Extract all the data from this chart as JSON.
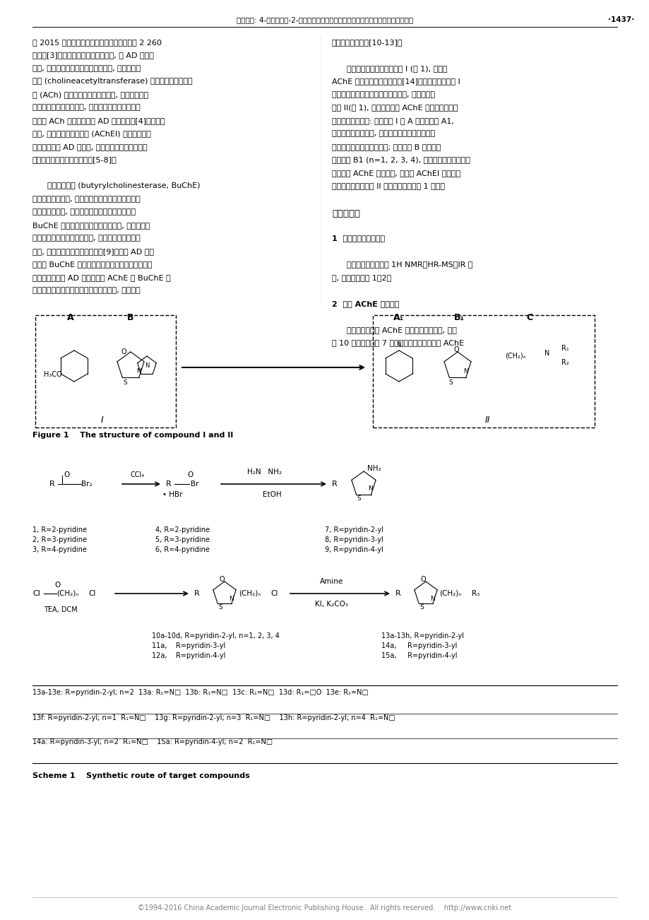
{
  "page_width": 9.2,
  "page_height": 13.02,
  "background_color": "#ffffff",
  "header_text": "曹婷婷等: 4-吡啶基噻唑-2-胺衍生物的设计、合成及其对乙酰胆碱酯酶的抑制活性研究",
  "header_page": "·1437·",
  "footer_text": "©1994-2016 China Academic Journal Electronic Publishing House.  All rights reserved.    http://www.cnki.net",
  "col1_text": [
    "仅 2015 年因阿尔茨海默病导致的费用就高达 2 260",
    "亿美元[3]。胆碱能神经损伤假说认为, 在 AD 病理过",
    "程中, 基底前脑区的胆碱能神经元丢失, 胆碱乙酰转",
    "移酶 (cholineacetyltransferase) 活性下降造成乙酰胆",
    "碱 (ACh) 的合成、释放和摄取减少, 使患者的学习",
    "和记忆力逐渐衰退。因此, 改善胆碱能神经系统、增",
    "加脑内 ACh 的水平是治疗 AD 的重要途径[4]。到目前",
    "为止, 乙酰胆碱酯酶抑制剂 (AChEI) 已被成功开发",
    "成临床上治疗 AD 的药物, 代表药物如石杉碱甲、他",
    "克林、多奈哌齐、利斯的明等[5-8]。",
    "",
    "      丁酰胆碱酯酶 (butyrylcholinesterase, BuChE)",
    "又称假性胆碱酯酶, 属于丝氨酸酶酶家族。主要分布",
    "于肝脏及血清中, 肌肉和脑组织中也有少量存在。",
    "BuChE 能与有机磷毒剂或杀虫剂结合, 并能水解许",
    "多酯类、肽类及酰胺类化合物, 参与某些药物的代谢",
    "过程, 它还有促进细胞生长的作用[9]。如果 AD 治疗",
    "药物使 BuChE 的活性受到抑制将会带来一定的不良",
    "反应。现有治疗 AD 的药物存在 AChE 与 BuChE 选",
    "择性抑制不理想、肾毒性、肝毒性等问题, 从而限制"
  ],
  "col2_text": [
    "了它们的临床应用[10-13]。",
    "",
    "      本实验室先前合成了化合物 I (图 1), 在抑制",
    "AChE 活性方面有一定的效果[14]。本文将在化合物 I",
    "的化学结构基础上对其结构进行优化, 合成新的化",
    "合物 II(图 1), 并考察它们对 AChE 的抑制作用。具",
    "体的优化过程如下: 将化合物 I 的 A 部分替换成 A1,",
    "即用吡啶环代替苯环, 考察引入具有孤电子对配位",
    "的吡啶后对生物活性的影响; 同时改变 B 官能团的",
    "长度得到 B1 (n=1, 2, 3, 4), 考察碳连长度的改变是",
    "否影响其 AChE 抑制活性, 为新的 AChEI 的开发做",
    "探索性研究。化合物 II 的合成如合成路线 1 所示。",
    "",
    "结果与讨论",
    "",
    "1  化合物的合成及鉴定",
    "",
    "      合成化合物的结构经 1H NMR、HR-MS、IR 确",
    "证, 理化数据见表 1、2。",
    "",
    "2  体外 AChE 抑制活性",
    "",
    "      新化合物的体外 AChE 抑制活性实验表明, 制备",
    "的 10 个化合物中有 7 个化合物具有一定的体外 AChE"
  ],
  "figure_caption": "Figure 1    The structure of compound I and II",
  "scheme_caption": "Scheme 1    Synthetic route of target compounds",
  "text_color": "#000000",
  "header_color": "#000000",
  "footer_color": "#808080",
  "line_color": "#000000"
}
